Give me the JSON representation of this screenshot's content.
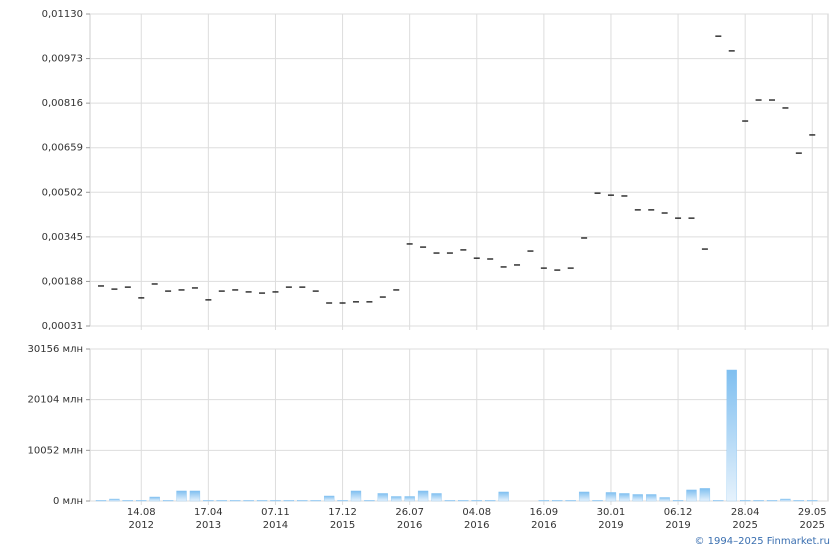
{
  "chart_data": [
    {
      "type": "dash",
      "categories": [
        null,
        null,
        null,
        "14.08\n2012",
        null,
        null,
        null,
        null,
        "17.04\n2013",
        null,
        null,
        null,
        null,
        "07.11\n2014",
        null,
        null,
        null,
        null,
        "17.12\n2015",
        null,
        null,
        null,
        null,
        "26.07\n2016",
        null,
        null,
        null,
        null,
        "04.08\n2016",
        null,
        null,
        null,
        null,
        "16.09\n2016",
        null,
        null,
        null,
        null,
        "30.01\n2019",
        null,
        null,
        null,
        null,
        "06.12\n2019",
        null,
        null,
        null,
        null,
        "28.04\n2025",
        null,
        null,
        null,
        null,
        "29.05\n2025"
      ],
      "values": [
        0.00172,
        0.00161,
        0.00168,
        0.0013,
        0.00179,
        0.00154,
        0.00158,
        0.00165,
        0.00123,
        0.00154,
        0.00158,
        0.00151,
        0.00147,
        0.00151,
        0.00168,
        0.00168,
        0.00154,
        0.00112,
        0.00112,
        0.00116,
        0.00116,
        0.00133,
        0.00158,
        0.0032,
        0.00309,
        0.00288,
        0.00288,
        0.00299,
        0.0027,
        0.00267,
        0.00239,
        0.00246,
        0.00295,
        0.00235,
        0.00228,
        0.00235,
        0.00341,
        0.00499,
        0.00492,
        0.00489,
        0.0044,
        0.0044,
        0.00429,
        0.00411,
        0.00411,
        0.00302,
        0.01052,
        0.01,
        0.00753,
        0.00827,
        0.00827,
        0.00799,
        0.0064,
        0.00704
      ],
      "color": "#000000",
      "ylim": [
        0.00031,
        0.0113
      ],
      "yticks": [
        {
          "value": 0.00031,
          "label": "0,00031"
        },
        {
          "value": 0.00188,
          "label": "0,00188"
        },
        {
          "value": 0.00345,
          "label": "0,00345"
        },
        {
          "value": 0.00502,
          "label": "0,00502"
        },
        {
          "value": 0.00659,
          "label": "0,00659"
        },
        {
          "value": 0.00816,
          "label": "0,00816"
        },
        {
          "value": 0.00973,
          "label": "0,00973"
        },
        {
          "value": 0.0113,
          "label": "0,01130"
        }
      ],
      "grid": true
    },
    {
      "type": "bar",
      "values": [
        150,
        400,
        150,
        150,
        800,
        150,
        2000,
        2000,
        150,
        150,
        150,
        150,
        150,
        150,
        150,
        150,
        150,
        1000,
        150,
        2000,
        150,
        1500,
        900,
        900,
        2000,
        1500,
        150,
        150,
        150,
        150,
        1800,
        0,
        0,
        150,
        150,
        150,
        1800,
        150,
        1700,
        1500,
        1300,
        1300,
        700,
        150,
        2200,
        2500,
        150,
        26000,
        150,
        150,
        150,
        400,
        150,
        150
      ],
      "color": "#7fbff0",
      "ylim": [
        0,
        30156
      ],
      "yticks": [
        {
          "value": 0,
          "label": "0 млн"
        },
        {
          "value": 10052,
          "label": "10052 млн"
        },
        {
          "value": 20104,
          "label": "20104 млн"
        },
        {
          "value": 30156,
          "label": "30156 млн"
        }
      ],
      "grid": true
    }
  ],
  "credit": "© 1994–2025 Finmarket.ru"
}
